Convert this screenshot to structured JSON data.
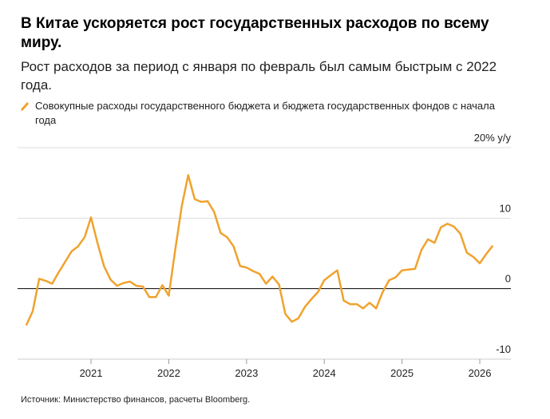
{
  "chart_data": {
    "type": "line",
    "title": "В Китае ускоряется рост государственных расходов по всему миру.",
    "subtitle": "Рост расходов за период с января по февраль был самым быстрым с 2022 года.",
    "source": "Источник: Министерство финансов, расчеты Bloomberg.",
    "series": [
      {
        "name": "Совокупные расходы государственного бюджета и бюджета государственных фондов с начала года",
        "color": "#f0a22e",
        "x": [
          2020.167,
          2020.25,
          2020.333,
          2020.417,
          2020.5,
          2020.583,
          2020.667,
          2020.75,
          2020.833,
          2020.917,
          2021.0,
          2021.083,
          2021.167,
          2021.25,
          2021.333,
          2021.417,
          2021.5,
          2021.583,
          2021.667,
          2021.75,
          2021.833,
          2021.917,
          2022.0,
          2022.083,
          2022.167,
          2022.25,
          2022.333,
          2022.417,
          2022.5,
          2022.583,
          2022.667,
          2022.75,
          2022.833,
          2022.917,
          2023.0,
          2023.083,
          2023.167,
          2023.25,
          2023.333,
          2023.417,
          2023.5,
          2023.583,
          2023.667,
          2023.75,
          2023.833,
          2023.917,
          2024.0,
          2024.083,
          2024.167,
          2024.25,
          2024.333,
          2024.417,
          2024.5,
          2024.583,
          2024.667,
          2024.75,
          2024.833,
          2024.917,
          2025.0,
          2025.083,
          2025.167,
          2025.25,
          2025.333,
          2025.417,
          2025.5,
          2025.583,
          2025.667,
          2025.75,
          2025.833,
          2025.917,
          2026.0,
          2026.083,
          2026.167
        ],
        "values": [
          -5.2,
          -3.2,
          1.4,
          1.1,
          0.7,
          2.3,
          3.8,
          5.3,
          6.0,
          7.3,
          10.1,
          6.5,
          3.2,
          1.3,
          0.4,
          0.8,
          1.0,
          0.4,
          0.3,
          -1.2,
          -1.2,
          0.5,
          -1.0,
          5.5,
          11.7,
          16.1,
          12.7,
          12.3,
          12.4,
          10.9,
          7.9,
          7.3,
          6.0,
          3.2,
          3.0,
          2.5,
          2.1,
          0.7,
          1.7,
          0.6,
          -3.6,
          -4.7,
          -4.2,
          -2.6,
          -1.5,
          -0.5,
          1.2,
          1.9,
          2.6,
          -1.7,
          -2.2,
          -2.2,
          -2.8,
          -2.0,
          -2.8,
          -0.5,
          1.2,
          1.6,
          2.6,
          2.7,
          2.8,
          5.5,
          7.0,
          6.5,
          8.7,
          9.2,
          8.8,
          7.8,
          5.1,
          4.5,
          3.6,
          4.9,
          6.1
        ]
      }
    ],
    "xlim": [
      2020.055,
      2026.4
    ],
    "xticks": [
      2021,
      2022,
      2023,
      2024,
      2025,
      2026
    ],
    "ylim": [
      -10,
      20
    ],
    "yticks": [
      {
        "value": 20,
        "label": "20% у/у"
      },
      10,
      0,
      -10
    ],
    "grid": true
  }
}
